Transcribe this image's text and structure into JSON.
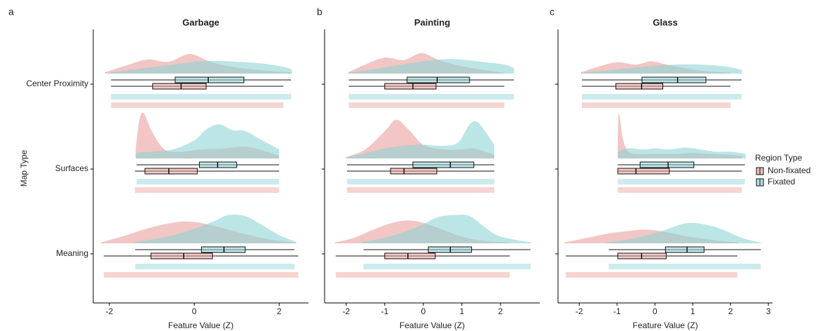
{
  "chart_data": [
    {
      "type": "raincloud",
      "panel_label": "a",
      "title": "Garbage",
      "xlabel": "Feature Value (Z)",
      "ylabel": "Map Type",
      "categories": [
        "Center Proximity",
        "Surfaces",
        "Meaning"
      ],
      "xlim": [
        -2.38,
        2.69
      ],
      "xticks": [
        -2,
        0,
        2
      ],
      "series": [
        {
          "color": "#e8a09c",
          "whisker_low": [
            -1.96,
            -1.4,
            -2.13
          ],
          "q1": [
            -0.98,
            -1.16,
            -1.02
          ],
          "median": [
            -0.31,
            -0.6,
            -0.25
          ],
          "q3": [
            0.28,
            0.07,
            0.43
          ],
          "whisker_high": [
            2.1,
            2.0,
            2.45
          ],
          "density_x": [
            [
              -2.1,
              -1.6,
              -1.1,
              -0.6,
              -0.1,
              0.4,
              0.9,
              1.4,
              1.9,
              2.3
            ],
            [
              -1.38,
              -1.3,
              -1.2,
              -1.0,
              -0.7,
              -0.3,
              0.2,
              0.7,
              1.2,
              1.6,
              2.0
            ],
            [
              -2.2,
              -1.7,
              -1.2,
              -0.7,
              -0.2,
              0.3,
              0.8,
              1.3,
              1.8,
              2.4
            ]
          ],
          "density_y": [
            [
              0.03,
              0.18,
              0.31,
              0.26,
              0.43,
              0.25,
              0.15,
              0.09,
              0.05,
              0.02
            ],
            [
              0.2,
              0.8,
              1.0,
              0.6,
              0.2,
              0.15,
              0.2,
              0.22,
              0.26,
              0.18,
              0.06
            ],
            [
              0.02,
              0.15,
              0.3,
              0.42,
              0.48,
              0.42,
              0.3,
              0.18,
              0.08,
              0.02
            ]
          ]
        },
        {
          "color": "#8fd3d6",
          "whisker_low": [
            -1.96,
            -1.36,
            -1.39
          ],
          "q1": [
            -0.45,
            0.12,
            0.17
          ],
          "median": [
            0.33,
            0.55,
            0.7
          ],
          "q3": [
            1.17,
            1.0,
            1.2
          ],
          "whisker_high": [
            2.28,
            2.0,
            2.36
          ],
          "density_x": [
            [
              -2.0,
              -1.5,
              -1.0,
              -0.5,
              0,
              0.5,
              1.0,
              1.5,
              2.0,
              2.3
            ],
            [
              -1.38,
              -1.0,
              -0.5,
              0,
              0.3,
              0.6,
              0.9,
              1.2,
              1.6,
              2.0
            ],
            [
              -1.4,
              -0.9,
              -0.4,
              0.1,
              0.5,
              0.8,
              1.2,
              1.6,
              2.0,
              2.4
            ]
          ],
          "density_y": [
            [
              0.02,
              0.08,
              0.14,
              0.2,
              0.26,
              0.28,
              0.26,
              0.23,
              0.17,
              0.1
            ],
            [
              0.12,
              0.15,
              0.2,
              0.4,
              0.65,
              0.75,
              0.62,
              0.6,
              0.4,
              0.2
            ],
            [
              0.03,
              0.1,
              0.2,
              0.35,
              0.5,
              0.62,
              0.6,
              0.4,
              0.18,
              0.03
            ]
          ]
        }
      ]
    },
    {
      "type": "raincloud",
      "panel_label": "b",
      "title": "Painting",
      "xlabel": "Feature Value (Z)",
      "xlim": [
        -2.56,
        3.02
      ],
      "xticks": [
        -2,
        -1,
        0,
        1,
        2
      ],
      "series": [
        {
          "color": "#e8a09c",
          "whisker_low": [
            -1.93,
            -1.98,
            -2.27
          ],
          "q1": [
            -1.0,
            -0.85,
            -1.0
          ],
          "median": [
            -0.27,
            -0.5,
            -0.4
          ],
          "q3": [
            0.33,
            0.35,
            0.31
          ],
          "whisker_high": [
            2.1,
            1.84,
            2.24
          ],
          "density_x": [
            [
              -1.95,
              -1.5,
              -1.0,
              -0.5,
              -0.05,
              0.4,
              0.9,
              1.4,
              1.9,
              2.1
            ],
            [
              -2.0,
              -1.5,
              -1.0,
              -0.7,
              -0.4,
              0,
              0.5,
              1.0,
              1.3,
              1.6,
              1.84
            ],
            [
              -2.3,
              -1.8,
              -1.3,
              -0.8,
              -0.4,
              0,
              0.5,
              1.0,
              1.5,
              2.2
            ]
          ],
          "density_y": [
            [
              0.03,
              0.2,
              0.35,
              0.3,
              0.45,
              0.3,
              0.18,
              0.1,
              0.04,
              0.02
            ],
            [
              0.03,
              0.2,
              0.6,
              0.85,
              0.65,
              0.3,
              0.2,
              0.2,
              0.22,
              0.15,
              0.08
            ],
            [
              0.02,
              0.12,
              0.3,
              0.45,
              0.5,
              0.45,
              0.3,
              0.15,
              0.06,
              0.02
            ]
          ]
        },
        {
          "color": "#8fd3d6",
          "whisker_low": [
            -1.93,
            -1.98,
            -1.55
          ],
          "q1": [
            -0.42,
            -0.27,
            0.13
          ],
          "median": [
            0.36,
            0.7,
            0.7
          ],
          "q3": [
            1.2,
            1.31,
            1.25
          ],
          "whisker_high": [
            2.35,
            1.84,
            2.78
          ],
          "density_x": [
            [
              -1.95,
              -1.4,
              -0.9,
              -0.4,
              0.1,
              0.6,
              1.1,
              1.6,
              2.1,
              2.35
            ],
            [
              -2.0,
              -1.5,
              -1.0,
              -0.5,
              0,
              0.5,
              0.9,
              1.2,
              1.4,
              1.6,
              1.84
            ],
            [
              -1.6,
              -1.0,
              -0.5,
              0,
              0.4,
              0.8,
              1.2,
              1.6,
              2.0,
              2.8
            ]
          ],
          "density_y": [
            [
              0.02,
              0.08,
              0.15,
              0.22,
              0.28,
              0.32,
              0.3,
              0.25,
              0.2,
              0.12
            ],
            [
              0.03,
              0.12,
              0.22,
              0.28,
              0.3,
              0.28,
              0.35,
              0.75,
              0.8,
              0.6,
              0.3
            ],
            [
              0.03,
              0.12,
              0.25,
              0.42,
              0.58,
              0.62,
              0.6,
              0.35,
              0.15,
              0.02
            ]
          ]
        }
      ]
    },
    {
      "type": "raincloud",
      "panel_label": "c",
      "title": "Glass",
      "xlabel": "Feature Value (Z)",
      "xlim": [
        -2.56,
        3.11
      ],
      "xticks": [
        -2,
        -1,
        0,
        1,
        2,
        3
      ],
      "legend": {
        "title": "Region Type",
        "items": [
          "Non-fixated",
          "Fixated"
        ],
        "position": "right"
      },
      "series": [
        {
          "color": "#e8a09c",
          "whisker_low": [
            -1.93,
            -0.98,
            -2.35
          ],
          "q1": [
            -1.03,
            -0.98,
            -0.98
          ],
          "median": [
            -0.35,
            -0.5,
            -0.35
          ],
          "q3": [
            0.21,
            0.38,
            0.3
          ],
          "whisker_high": [
            2.0,
            2.3,
            2.18
          ],
          "density_x": [
            [
              -1.95,
              -1.5,
              -1.0,
              -0.5,
              -0.1,
              0.3,
              0.8,
              1.3,
              1.8,
              2.0
            ],
            [
              -0.98,
              -0.95,
              -0.85,
              -0.7,
              -0.4,
              0,
              0.5,
              1.0,
              1.5,
              2.0,
              2.3
            ],
            [
              -2.4,
              -1.8,
              -1.2,
              -0.6,
              -0.2,
              0.3,
              0.8,
              1.3,
              1.8,
              2.2
            ]
          ],
          "density_y": [
            [
              0.03,
              0.15,
              0.25,
              0.2,
              0.27,
              0.2,
              0.12,
              0.06,
              0.03,
              0.02
            ],
            [
              0.4,
              1.0,
              0.45,
              0.15,
              0.1,
              0.1,
              0.1,
              0.12,
              0.1,
              0.08,
              0.05
            ],
            [
              0.02,
              0.12,
              0.22,
              0.28,
              0.3,
              0.25,
              0.16,
              0.1,
              0.05,
              0.02
            ]
          ]
        },
        {
          "color": "#8fd3d6",
          "whisker_low": [
            -1.93,
            -0.98,
            -1.22
          ],
          "q1": [
            -0.34,
            -0.39,
            0.28
          ],
          "median": [
            0.6,
            0.35,
            0.85
          ],
          "q3": [
            1.35,
            1.03,
            1.3
          ],
          "whisker_high": [
            2.29,
            2.38,
            2.8
          ],
          "density_x": [
            [
              -1.95,
              -1.4,
              -0.9,
              -0.4,
              0.1,
              0.6,
              1.1,
              1.6,
              2.0,
              2.3
            ],
            [
              -0.98,
              -0.7,
              -0.3,
              0,
              0.4,
              0.8,
              1.2,
              1.6,
              2.0,
              2.4
            ],
            [
              -1.3,
              -0.7,
              -0.2,
              0.3,
              0.7,
              1.0,
              1.4,
              1.8,
              2.3,
              2.8
            ]
          ],
          "density_y": [
            [
              0.02,
              0.06,
              0.1,
              0.14,
              0.18,
              0.2,
              0.2,
              0.18,
              0.14,
              0.08
            ],
            [
              0.15,
              0.22,
              0.2,
              0.22,
              0.2,
              0.24,
              0.2,
              0.15,
              0.15,
              0.1
            ],
            [
              0.02,
              0.08,
              0.18,
              0.3,
              0.42,
              0.45,
              0.4,
              0.3,
              0.12,
              0.02
            ]
          ]
        }
      ]
    }
  ]
}
